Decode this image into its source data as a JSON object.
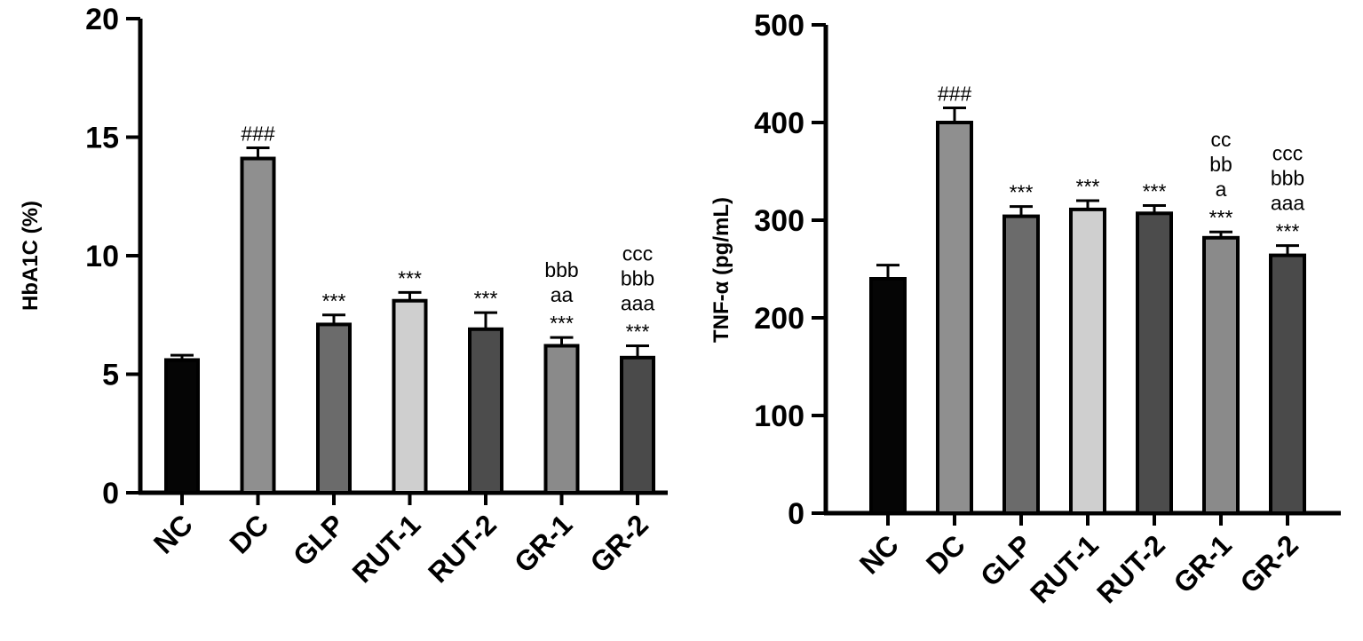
{
  "chart_data": [
    {
      "type": "bar",
      "ylabel": "HbA1C (%)",
      "ylim": [
        0,
        20
      ],
      "yticks": [
        0,
        5,
        10,
        15,
        20
      ],
      "categories": [
        "NC",
        "DC",
        "GLP",
        "RUT-1",
        "RUT-2",
        "GR-1",
        "GR-2"
      ],
      "values": [
        5.6,
        14.1,
        7.1,
        8.1,
        6.9,
        6.2,
        5.7
      ],
      "errors": [
        0.2,
        0.45,
        0.4,
        0.35,
        0.7,
        0.35,
        0.5
      ],
      "colors": [
        "#050505",
        "#8f8f8f",
        "#6b6b6b",
        "#cfcfcf",
        "#4c4c4c",
        "#8a8a8a",
        "#4a4a4a"
      ],
      "annotations": [
        [],
        [
          "###"
        ],
        [
          "***"
        ],
        [
          "***"
        ],
        [
          "***"
        ],
        [
          "bbb",
          "aa",
          "***"
        ],
        [
          "ccc",
          "bbb",
          "aaa",
          "***"
        ]
      ]
    },
    {
      "type": "bar",
      "ylabel": "TNF-α  (pg/mL)",
      "ylim": [
        0,
        500
      ],
      "yticks": [
        0,
        100,
        200,
        300,
        400,
        500
      ],
      "categories": [
        "NC",
        "DC",
        "GLP",
        "RUT-1",
        "RUT-2",
        "GR-1",
        "GR-2"
      ],
      "values": [
        240,
        400,
        304,
        311,
        307,
        282,
        264
      ],
      "errors": [
        14,
        15,
        10,
        9,
        8,
        6,
        10
      ],
      "colors": [
        "#050505",
        "#8f8f8f",
        "#6b6b6b",
        "#cfcfcf",
        "#4c4c4c",
        "#8a8a8a",
        "#4a4a4a"
      ],
      "annotations": [
        [],
        [
          "###"
        ],
        [
          "***"
        ],
        [
          "***"
        ],
        [
          "***"
        ],
        [
          "cc",
          "bb",
          "a",
          "***"
        ],
        [
          "ccc",
          "bbb",
          "aaa",
          "***"
        ]
      ]
    }
  ]
}
